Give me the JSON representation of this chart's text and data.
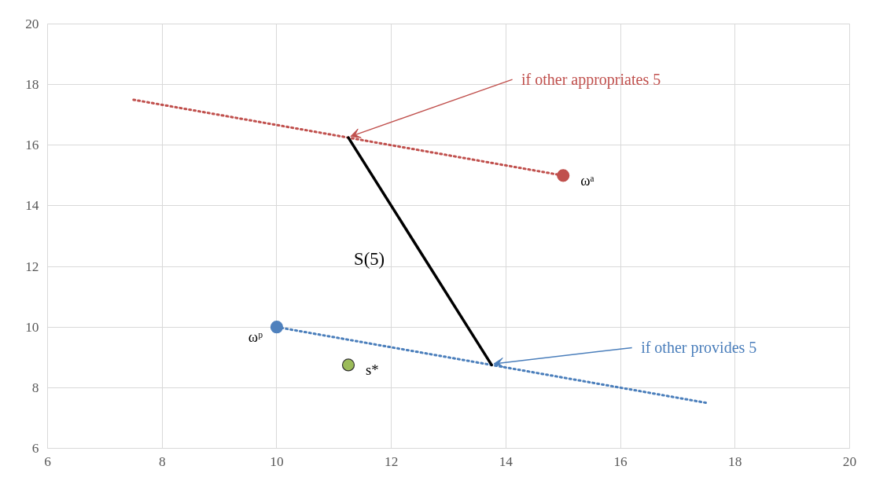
{
  "chart_data": {
    "type": "line",
    "xlim": [
      6,
      20
    ],
    "ylim": [
      6,
      20
    ],
    "xticks": [
      6,
      8,
      10,
      12,
      14,
      16,
      18,
      20
    ],
    "yticks": [
      6,
      8,
      10,
      12,
      14,
      16,
      18,
      20
    ],
    "grid": true,
    "legend": false,
    "series": [
      {
        "type": "line",
        "color": "#c0504d",
        "line_style": "dotted",
        "x": [
          7.5,
          15
        ],
        "values": [
          17.5,
          15
        ]
      },
      {
        "type": "line",
        "color": "#4a7ebb",
        "line_style": "dotted",
        "x": [
          10,
          17.5
        ],
        "values": [
          10,
          7.5
        ]
      },
      {
        "name": "S(5)",
        "color": "#000000",
        "line_style": "solid",
        "x": [
          11.25,
          13.75
        ],
        "values": [
          16.25,
          8.75
        ]
      },
      {
        "type": "scatter",
        "name": "ωᵃ",
        "color": "#c0504d",
        "marker": "circle",
        "x": [
          15
        ],
        "values": [
          15
        ]
      },
      {
        "type": "scatter",
        "name": "ωᵖ",
        "color": "#4f81bd",
        "marker": "circle",
        "x": [
          10
        ],
        "values": [
          10
        ]
      },
      {
        "type": "scatter",
        "name": "s*",
        "color": "#9bbb59",
        "marker": "circle",
        "x": [
          11.25
        ],
        "values": [
          8.75
        ]
      }
    ],
    "annotations": [
      {
        "text": "if other appropriates 5",
        "x": 11.25,
        "y": 16.25
      },
      {
        "text": "if other provides 5",
        "x": 13.75,
        "y": 8.75
      }
    ]
  }
}
